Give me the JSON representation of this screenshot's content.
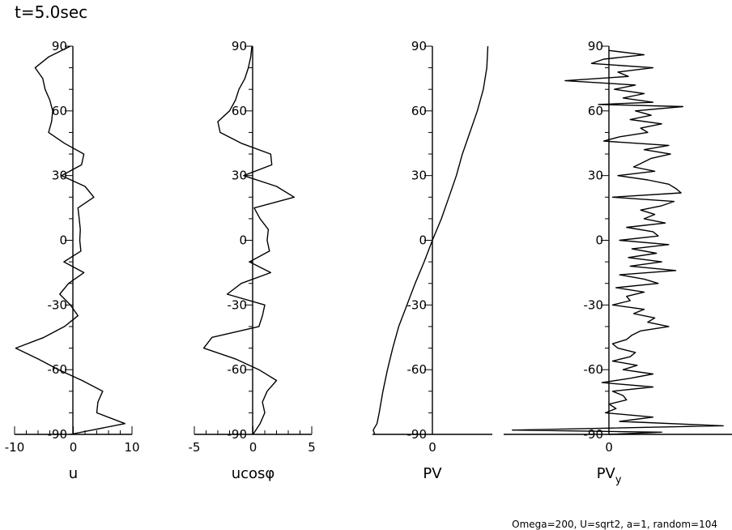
{
  "title": "t=5.0sec",
  "footer": "Omega=200, U=sqrt2, a=1, random=104",
  "chart_data": [
    {
      "type": "line",
      "xlabel": "u",
      "xticks": [
        "-10",
        "0",
        "10"
      ],
      "xlim": [
        -10,
        10
      ],
      "ylim": [
        -90,
        90
      ],
      "yticks": [
        "90",
        "60",
        "30",
        "0",
        "-30",
        "-60",
        "-90"
      ],
      "series": [
        {
          "y": [
            90,
            85,
            80,
            75,
            70,
            65,
            60,
            55,
            50,
            45,
            40,
            35,
            30,
            25,
            20,
            15,
            10,
            5,
            0,
            -5,
            -10,
            -15,
            -20,
            -25,
            -30,
            -35,
            -40,
            -45,
            -50,
            -55,
            -60,
            -65,
            -70,
            -75,
            -80,
            -85,
            -90
          ],
          "x": [
            -0.5,
            -4.2,
            -6.5,
            -5.2,
            -4.8,
            -4.0,
            -3.5,
            -3.7,
            -4.2,
            -1.5,
            1.8,
            1.4,
            -2.0,
            2.0,
            3.5,
            0.8,
            1.0,
            1.2,
            1.1,
            1.3,
            -1.6,
            1.8,
            -0.8,
            -2.3,
            -0.5,
            0.8,
            -1.5,
            -5.0,
            -9.8,
            -6.0,
            -2.5,
            1.5,
            5.0,
            4.2,
            4.0,
            8.8,
            -0.5
          ]
        }
      ]
    },
    {
      "type": "line",
      "xlabel": "ucosφ",
      "xticks": [
        "-5",
        "0",
        "5"
      ],
      "xlim": [
        -5,
        5
      ],
      "ylim": [
        -90,
        90
      ],
      "yticks": [
        "90",
        "60",
        "30",
        "0",
        "-30",
        "-60",
        "-90"
      ],
      "series": [
        {
          "y": [
            90,
            85,
            80,
            75,
            70,
            65,
            60,
            55,
            50,
            45,
            40,
            35,
            30,
            25,
            20,
            15,
            10,
            5,
            0,
            -5,
            -10,
            -15,
            -20,
            -25,
            -30,
            -35,
            -40,
            -45,
            -50,
            -55,
            -60,
            -65,
            -70,
            -75,
            -80,
            -85,
            -90
          ],
          "x": [
            -0.1,
            -0.2,
            -0.4,
            -0.7,
            -1.2,
            -1.5,
            -2.0,
            -3.0,
            -2.8,
            -1.0,
            1.5,
            1.6,
            -0.8,
            2.0,
            3.5,
            0.1,
            0.6,
            1.3,
            1.2,
            1.4,
            -0.3,
            1.5,
            -1.0,
            -2.2,
            1.0,
            0.8,
            0.5,
            -3.5,
            -4.2,
            -1.5,
            0.5,
            2.0,
            1.2,
            0.8,
            1.0,
            0.6,
            0.0
          ]
        }
      ]
    },
    {
      "type": "line",
      "xlabel": "PV",
      "xticks": [
        "0"
      ],
      "xlim": [
        -400,
        400
      ],
      "ylim": [
        -90,
        90
      ],
      "yticks": [
        "90",
        "60",
        "30",
        "0",
        "-30",
        "-60",
        "-90"
      ],
      "series": [
        {
          "y": [
            90,
            80,
            70,
            60,
            50,
            40,
            30,
            20,
            10,
            0,
            -10,
            -20,
            -30,
            -40,
            -50,
            -60,
            -70,
            -80,
            -85,
            -88,
            -90
          ],
          "x": [
            370,
            363,
            340,
            300,
            250,
            200,
            160,
            110,
            60,
            0,
            -55,
            -115,
            -170,
            -225,
            -265,
            -300,
            -330,
            -355,
            -370,
            -395,
            -385
          ]
        }
      ]
    },
    {
      "type": "line",
      "xlabel": "PV",
      "xlabel_sub": "y",
      "xticks": [
        "0"
      ],
      "xlim": [
        -600,
        700
      ],
      "ylim": [
        -90,
        90
      ],
      "yticks": [
        "90",
        "60",
        "30",
        "0",
        "-30",
        "-60",
        "-90"
      ],
      "series": [
        {
          "y": [
            88,
            86,
            84,
            82,
            80,
            78,
            76,
            74,
            72,
            70,
            68,
            66,
            64,
            63,
            62,
            60,
            58,
            56,
            54,
            52,
            50,
            48,
            46,
            44,
            42,
            40,
            38,
            36,
            34,
            32,
            30,
            28,
            26,
            24,
            22,
            20,
            18,
            16,
            14,
            12,
            10,
            8,
            6,
            4,
            2,
            0,
            -2,
            -4,
            -6,
            -8,
            -10,
            -12,
            -14,
            -16,
            -18,
            -20,
            -22,
            -24,
            -26,
            -28,
            -30,
            -32,
            -34,
            -36,
            -38,
            -40,
            -42,
            -44,
            -46,
            -48,
            -50,
            -52,
            -54,
            -56,
            -58,
            -60,
            -62,
            -64,
            -66,
            -68,
            -70,
            -72,
            -74,
            -76,
            -78,
            -80,
            -82,
            -84,
            -86,
            -88,
            -89,
            -90
          ],
          "x": [
            0,
            200,
            -30,
            -100,
            250,
            50,
            110,
            -250,
            150,
            30,
            200,
            80,
            250,
            -60,
            420,
            150,
            240,
            120,
            300,
            180,
            220,
            60,
            -30,
            340,
            200,
            350,
            240,
            190,
            140,
            260,
            50,
            220,
            340,
            380,
            410,
            20,
            370,
            300,
            180,
            260,
            200,
            320,
            100,
            250,
            280,
            60,
            340,
            130,
            270,
            110,
            300,
            120,
            380,
            60,
            200,
            280,
            40,
            200,
            100,
            120,
            20,
            200,
            140,
            260,
            220,
            340,
            180,
            130,
            100,
            20,
            50,
            150,
            120,
            20,
            160,
            80,
            250,
            120,
            -40,
            250,
            20,
            80,
            100,
            0,
            40,
            -20,
            250,
            60,
            650,
            -550,
            300,
            0
          ]
        }
      ]
    }
  ]
}
